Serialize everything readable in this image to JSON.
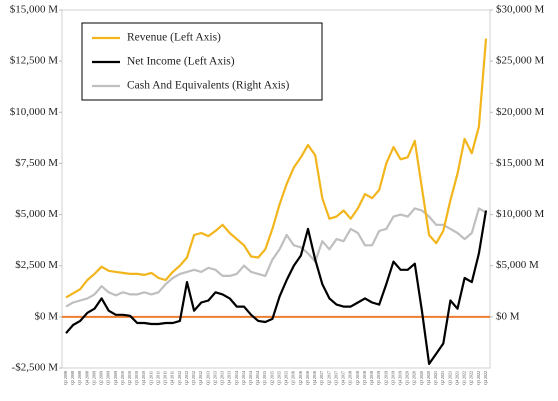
{
  "chart_data": {
    "type": "line",
    "categories": [
      "Q1 2008",
      "Q2 2008",
      "Q3 2008",
      "Q4 2008",
      "Q1 2009",
      "Q2 2009",
      "Q3 2009",
      "Q4 2009",
      "Q1 2010",
      "Q2 2010",
      "Q3 2010",
      "Q4 2010",
      "Q1 2011",
      "Q2 2011",
      "Q3 2011",
      "Q4 2011",
      "Q1 2012",
      "Q2 2012",
      "Q3 2012",
      "Q4 2012",
      "Q1 2013",
      "Q2 2013",
      "Q3 2013",
      "Q4 2013",
      "Q1 2014",
      "Q2 2014",
      "Q3 2014",
      "Q4 2014",
      "Q1 2015",
      "Q2 2015",
      "Q3 2015",
      "Q4 2015",
      "Q1 2016",
      "Q2 2016",
      "Q3 2016",
      "Q4 2016",
      "Q1 2017",
      "Q2 2017",
      "Q3 2017",
      "Q4 2017",
      "Q1 2018",
      "Q2 2018",
      "Q3 2018",
      "Q4 2018",
      "Q1 2019",
      "Q2 2019",
      "Q3 2019",
      "Q4 2019",
      "Q1 2020",
      "Q2 2020",
      "Q3 2020",
      "Q4 2020",
      "Q1 2021",
      "Q2 2021",
      "Q3 2021",
      "Q4 2021",
      "Q1 2022",
      "Q2 2022",
      "Q3 2022",
      "Q4 2022"
    ],
    "series": [
      {
        "name": "Revenue (Left Axis)",
        "color": "#f2b51c",
        "axis": "y",
        "values": [
          950,
          1150,
          1350,
          1800,
          2100,
          2450,
          2250,
          2200,
          2150,
          2100,
          2100,
          2050,
          2150,
          1900,
          1800,
          2200,
          2500,
          2900,
          4000,
          4100,
          3950,
          4200,
          4500,
          4100,
          3800,
          3500,
          2950,
          2900,
          3300,
          4300,
          5500,
          6500,
          7300,
          7800,
          8400,
          7900,
          5800,
          4800,
          4900,
          5200,
          4800,
          5300,
          6000,
          5800,
          6200,
          7500,
          8300,
          7700,
          7800,
          8600,
          6300,
          4000,
          3600,
          4200,
          5700,
          7000,
          8700,
          8000,
          9300,
          13600
        ]
      },
      {
        "name": "Net Income (Left Axis)",
        "color": "#000000",
        "axis": "y",
        "values": [
          -800,
          -400,
          -200,
          200,
          400,
          900,
          300,
          100,
          100,
          50,
          -300,
          -300,
          -350,
          -350,
          -300,
          -300,
          -200,
          1700,
          300,
          700,
          800,
          1200,
          1100,
          900,
          500,
          500,
          100,
          -200,
          -250,
          -100,
          1000,
          1800,
          2500,
          3000,
          4300,
          2800,
          1600,
          900,
          600,
          500,
          500,
          700,
          900,
          700,
          600,
          1600,
          2700,
          2300,
          2300,
          2600,
          300,
          -2300,
          -1800,
          -1300,
          800,
          400,
          1900,
          1700,
          3100,
          5200
        ]
      },
      {
        "name": "Cash And Equivalents (Right Axis)",
        "color": "#bfbfbf",
        "axis": "y2",
        "values": [
          1000,
          1400,
          1600,
          1800,
          2200,
          3000,
          2400,
          2100,
          2400,
          2200,
          2200,
          2400,
          2200,
          2400,
          3200,
          3800,
          4200,
          4400,
          4600,
          4400,
          4800,
          4600,
          4000,
          4000,
          4200,
          5000,
          4400,
          4200,
          4000,
          5600,
          6600,
          8000,
          7000,
          6800,
          6200,
          5400,
          7400,
          6600,
          7600,
          7400,
          8600,
          8200,
          7000,
          7000,
          8400,
          8600,
          9800,
          10000,
          9800,
          10600,
          10400,
          9800,
          9000,
          9000,
          8600,
          8200,
          7600,
          8200,
          10600,
          10200
        ]
      }
    ],
    "ylim": [
      -2500,
      15000
    ],
    "yticks": [
      {
        "value": -2500,
        "label": "-$2,500 M"
      },
      {
        "value": 0,
        "label": "$0 M"
      },
      {
        "value": 2500,
        "label": "$2,500 M"
      },
      {
        "value": 5000,
        "label": "$5,000 M"
      },
      {
        "value": 7500,
        "label": "$7,500 M"
      },
      {
        "value": 10000,
        "label": "$10,000 M"
      },
      {
        "value": 12500,
        "label": "$12,500 M"
      },
      {
        "value": 15000,
        "label": "$15,000 M"
      }
    ],
    "y2lim": [
      -5000,
      30000
    ],
    "y2ticks": [
      {
        "value": 0,
        "label": "$0 M"
      },
      {
        "value": 5000,
        "label": "$5,000 M"
      },
      {
        "value": 10000,
        "label": "$10,000 M"
      },
      {
        "value": 15000,
        "label": "$15,000 M"
      },
      {
        "value": 20000,
        "label": "$20,000 M"
      },
      {
        "value": 25000,
        "label": "$25,000 M"
      },
      {
        "value": 30000,
        "label": "$30,000 M"
      }
    ],
    "zero_line_color": "#ed7d31",
    "legend": "upper left",
    "grid": false
  }
}
